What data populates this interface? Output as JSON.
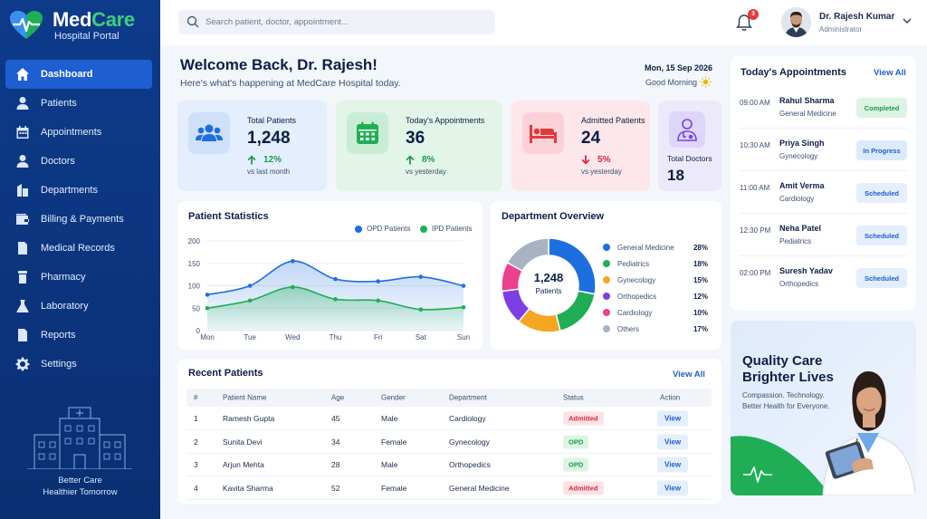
{
  "brand": {
    "name_part1": "Med",
    "name_part2": "Care",
    "subtitle": "Hospital Portal"
  },
  "sidebar": {
    "items": [
      {
        "label": "Dashboard",
        "icon": "home-icon",
        "active": true
      },
      {
        "label": "Patients",
        "icon": "user-icon",
        "active": false
      },
      {
        "label": "Appointments",
        "icon": "calendar-icon",
        "active": false
      },
      {
        "label": "Doctors",
        "icon": "doctor-icon",
        "active": false
      },
      {
        "label": "Departments",
        "icon": "building-icon",
        "active": false
      },
      {
        "label": "Billing & Payments",
        "icon": "wallet-icon",
        "active": false
      },
      {
        "label": "Medical Records",
        "icon": "document-icon",
        "active": false
      },
      {
        "label": "Pharmacy",
        "icon": "pill-icon",
        "active": false
      },
      {
        "label": "Laboratory",
        "icon": "flask-icon",
        "active": false
      },
      {
        "label": "Reports",
        "icon": "report-icon",
        "active": false
      },
      {
        "label": "Settings",
        "icon": "gear-icon",
        "active": false
      }
    ],
    "tagline_line1": "Better Care",
    "tagline_line2": "Healthier Tomorrow"
  },
  "topbar": {
    "search_placeholder": "Search patient, doctor, appointment...",
    "notification_count": "3",
    "user_name": "Dr. Rajesh Kumar",
    "user_role": "Administrator"
  },
  "welcome": {
    "title": "Welcome Back, Dr. Rajesh!",
    "subtitle": "Here's what's happening at MedCare Hospital today.",
    "date": "Mon, 15 Sep 2026",
    "greeting": "Good Morning"
  },
  "stats": [
    {
      "label": "Total Patients",
      "value": "1,248",
      "change": "12%",
      "direction": "up",
      "compare": "vs last month"
    },
    {
      "label": "Today's Appointments",
      "value": "36",
      "change": "8%",
      "direction": "up",
      "compare": "vs yesterday"
    },
    {
      "label": "Admitted Patients",
      "value": "24",
      "change": "5%",
      "direction": "down",
      "compare": "vs yesterday"
    },
    {
      "label": "Total Doctors",
      "value": "18"
    }
  ],
  "colors": {
    "primary": "#1d5fd1",
    "green": "#1fae55",
    "red": "#e23b3b",
    "sidebar": "#0d3b8a"
  },
  "patient_stats": {
    "title": "Patient Statistics",
    "chart_data": {
      "type": "line",
      "categories": [
        "Mon",
        "Tue",
        "Wed",
        "Thu",
        "Fri",
        "Sat",
        "Sun"
      ],
      "series": [
        {
          "name": "OPD Patients",
          "color": "#1d6fe0",
          "values": [
            80,
            100,
            155,
            115,
            110,
            120,
            100
          ]
        },
        {
          "name": "IPD Patients",
          "color": "#1fae55",
          "values": [
            50,
            67,
            97,
            70,
            67,
            47,
            52
          ]
        }
      ],
      "ylim": [
        0,
        200
      ],
      "yticks": [
        0,
        50,
        100,
        150,
        200
      ],
      "legend": "top-right"
    }
  },
  "department_overview": {
    "title": "Department Overview",
    "center_value": "1,248",
    "center_label": "Patients",
    "chart_data": {
      "type": "pie",
      "labels": [
        "General Medicine",
        "Pediatrics",
        "Gynecology",
        "Orthopedics",
        "Cardiology",
        "Others"
      ],
      "values": [
        28,
        18,
        15,
        12,
        10,
        17
      ],
      "display": [
        "28%",
        "18%",
        "15%",
        "12%",
        "10%",
        "17%"
      ],
      "colors": [
        "#1d6fe0",
        "#1fae55",
        "#f5a623",
        "#7b3fe4",
        "#ec3f8c",
        "#a7b2c3"
      ]
    }
  },
  "recent_patients": {
    "title": "Recent Patients",
    "view_all": "View All",
    "headers": [
      "#",
      "Patient Name",
      "Age",
      "Gender",
      "Department",
      "Status",
      "Action"
    ],
    "rows": [
      {
        "num": "1",
        "name": "Ramesh Gupta",
        "age": "45",
        "gender": "Male",
        "dept": "Cardiology",
        "status": "Admitted",
        "action": "View"
      },
      {
        "num": "2",
        "name": "Sunita Devi",
        "age": "34",
        "gender": "Female",
        "dept": "Gynecology",
        "status": "OPD",
        "action": "View"
      },
      {
        "num": "3",
        "name": "Arjun Mehta",
        "age": "28",
        "gender": "Male",
        "dept": "Orthopedics",
        "status": "OPD",
        "action": "View"
      },
      {
        "num": "4",
        "name": "Kavita Sharma",
        "age": "52",
        "gender": "Female",
        "dept": "General Medicine",
        "status": "Admitted",
        "action": "View"
      }
    ]
  },
  "appointments": {
    "title": "Today's Appointments",
    "view_all": "View All",
    "items": [
      {
        "time": "09:00 AM",
        "name": "Rahul Sharma",
        "dept": "General Medicine",
        "status": "Completed"
      },
      {
        "time": "10:30 AM",
        "name": "Priya Singh",
        "dept": "Gynecology",
        "status": "In Progress"
      },
      {
        "time": "11:00 AM",
        "name": "Amit Verma",
        "dept": "Cardiology",
        "status": "Scheduled"
      },
      {
        "time": "12:30 PM",
        "name": "Neha Patel",
        "dept": "Pediatrics",
        "status": "Scheduled"
      },
      {
        "time": "02:00 PM",
        "name": "Suresh Yadav",
        "dept": "Orthopedics",
        "status": "Scheduled"
      }
    ]
  },
  "promo": {
    "title_line1": "Quality Care",
    "title_line2": "Brighter Lives",
    "sub_line1": "Compassion. Technology.",
    "sub_line2": "Better Health for Everyone."
  }
}
